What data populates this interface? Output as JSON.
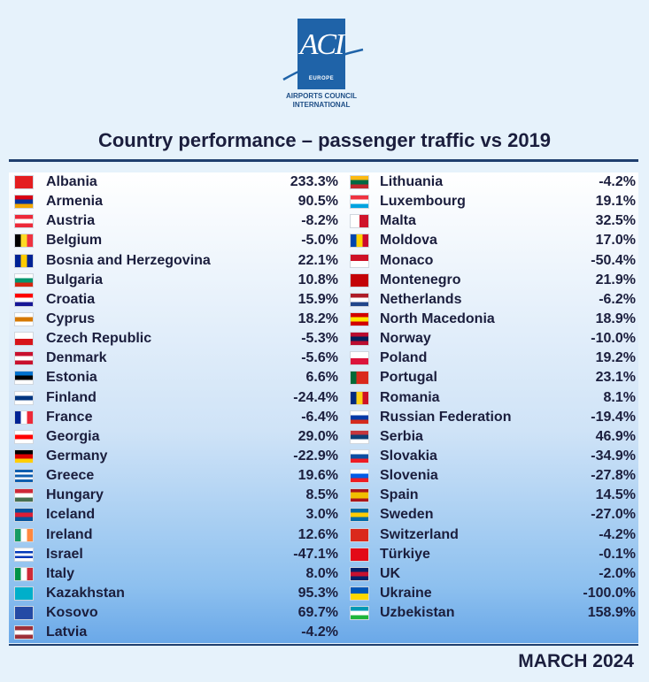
{
  "logo": {
    "brand": "ACI",
    "region": "EUROPE",
    "org_line1": "AIRPORTS COUNCIL",
    "org_line2": "INTERNATIONAL"
  },
  "title": "Country performance – passenger traffic vs 2019",
  "date": "MARCH 2024",
  "left_countries": [
    {
      "name": "Albania",
      "value": "233.3%",
      "flag": "albania-flag",
      "stripes": [
        "#e41e20"
      ],
      "dir": "h"
    },
    {
      "name": "Armenia",
      "value": "90.5%",
      "flag": "armenia-flag",
      "stripes": [
        "#d90012",
        "#0033a0",
        "#f2a800"
      ],
      "dir": "h"
    },
    {
      "name": "Austria",
      "value": "-8.2%",
      "flag": "austria-flag",
      "stripes": [
        "#ed2939",
        "#ffffff",
        "#ed2939"
      ],
      "dir": "h"
    },
    {
      "name": "Belgium",
      "value": "-5.0%",
      "flag": "belgium-flag",
      "stripes": [
        "#000000",
        "#fdda24",
        "#ef3340"
      ],
      "dir": "v"
    },
    {
      "name": "Bosnia and Herzegovina",
      "value": "22.1%",
      "flag": "bosnia-flag",
      "stripes": [
        "#002395",
        "#fecb00",
        "#002395"
      ],
      "dir": "v"
    },
    {
      "name": "Bulgaria",
      "value": "10.8%",
      "flag": "bulgaria-flag",
      "stripes": [
        "#ffffff",
        "#00966e",
        "#d62612"
      ],
      "dir": "h"
    },
    {
      "name": "Croatia",
      "value": "15.9%",
      "flag": "croatia-flag",
      "stripes": [
        "#ff0000",
        "#ffffff",
        "#171796"
      ],
      "dir": "h"
    },
    {
      "name": "Cyprus",
      "value": "18.2%",
      "flag": "cyprus-flag",
      "stripes": [
        "#ffffff",
        "#d57800",
        "#ffffff"
      ],
      "dir": "h"
    },
    {
      "name": "Czech Republic",
      "value": "-5.3%",
      "flag": "czech-flag",
      "stripes": [
        "#ffffff",
        "#d7141a"
      ],
      "dir": "h"
    },
    {
      "name": "Denmark",
      "value": "-5.6%",
      "flag": "denmark-flag",
      "stripes": [
        "#c8102e",
        "#ffffff",
        "#c8102e"
      ],
      "dir": "h"
    },
    {
      "name": "Estonia",
      "value": "6.6%",
      "flag": "estonia-flag",
      "stripes": [
        "#0072ce",
        "#000000",
        "#ffffff"
      ],
      "dir": "h"
    },
    {
      "name": "Finland",
      "value": "-24.4%",
      "flag": "finland-flag",
      "stripes": [
        "#ffffff",
        "#003580",
        "#ffffff"
      ],
      "dir": "h"
    },
    {
      "name": "France",
      "value": "-6.4%",
      "flag": "france-flag",
      "stripes": [
        "#002395",
        "#ffffff",
        "#ed2939"
      ],
      "dir": "v"
    },
    {
      "name": "Georgia",
      "value": "29.0%",
      "flag": "georgia-flag",
      "stripes": [
        "#ffffff",
        "#ff0000",
        "#ffffff"
      ],
      "dir": "h"
    },
    {
      "name": "Germany",
      "value": "-22.9%",
      "flag": "germany-flag",
      "stripes": [
        "#000000",
        "#dd0000",
        "#ffce00"
      ],
      "dir": "h"
    },
    {
      "name": "Greece",
      "value": "19.6%",
      "flag": "greece-flag",
      "stripes": [
        "#0d5eaf",
        "#ffffff",
        "#0d5eaf",
        "#ffffff",
        "#0d5eaf"
      ],
      "dir": "h"
    },
    {
      "name": "Hungary",
      "value": "8.5%",
      "flag": "hungary-flag",
      "stripes": [
        "#ce2939",
        "#ffffff",
        "#477050"
      ],
      "dir": "h"
    },
    {
      "name": "Iceland",
      "value": "3.0%",
      "flag": "iceland-flag",
      "stripes": [
        "#02529c",
        "#dc1e35",
        "#02529c"
      ],
      "dir": "h"
    },
    {
      "name": "Ireland",
      "value": "12.6%",
      "flag": "ireland-flag",
      "stripes": [
        "#169b62",
        "#ffffff",
        "#ff883e"
      ],
      "dir": "v"
    },
    {
      "name": "Israel",
      "value": "-47.1%",
      "flag": "israel-flag",
      "stripes": [
        "#ffffff",
        "#0038b8",
        "#ffffff",
        "#0038b8",
        "#ffffff"
      ],
      "dir": "h"
    },
    {
      "name": "Italy",
      "value": "8.0%",
      "flag": "italy-flag",
      "stripes": [
        "#009246",
        "#ffffff",
        "#ce2b37"
      ],
      "dir": "v"
    },
    {
      "name": "Kazakhstan",
      "value": "95.3%",
      "flag": "kazakhstan-flag",
      "stripes": [
        "#00afca"
      ],
      "dir": "h"
    },
    {
      "name": "Kosovo",
      "value": "69.7%",
      "flag": "kosovo-flag",
      "stripes": [
        "#244aa5"
      ],
      "dir": "h"
    },
    {
      "name": "Latvia",
      "value": "-4.2%",
      "flag": "latvia-flag",
      "stripes": [
        "#9e3039",
        "#ffffff",
        "#9e3039"
      ],
      "dir": "h"
    }
  ],
  "right_countries": [
    {
      "name": "Lithuania",
      "value": "-4.2%",
      "flag": "lithuania-flag",
      "stripes": [
        "#fdb913",
        "#006a44",
        "#c1272d"
      ],
      "dir": "h"
    },
    {
      "name": "Luxembourg",
      "value": "19.1%",
      "flag": "luxembourg-flag",
      "stripes": [
        "#ef3340",
        "#ffffff",
        "#00a3e0"
      ],
      "dir": "h"
    },
    {
      "name": "Malta",
      "value": "32.5%",
      "flag": "malta-flag",
      "stripes": [
        "#ffffff",
        "#cf142b"
      ],
      "dir": "v"
    },
    {
      "name": "Moldova",
      "value": "17.0%",
      "flag": "moldova-flag",
      "stripes": [
        "#0046ae",
        "#ffd200",
        "#cc092f"
      ],
      "dir": "v"
    },
    {
      "name": "Monaco",
      "value": "-50.4%",
      "flag": "monaco-flag",
      "stripes": [
        "#ce1126",
        "#ffffff"
      ],
      "dir": "h"
    },
    {
      "name": "Montenegro",
      "value": "21.9%",
      "flag": "montenegro-flag",
      "stripes": [
        "#c40308"
      ],
      "dir": "h"
    },
    {
      "name": "Netherlands",
      "value": "-6.2%",
      "flag": "netherlands-flag",
      "stripes": [
        "#ae1c28",
        "#ffffff",
        "#21468b"
      ],
      "dir": "h"
    },
    {
      "name": "North Macedonia",
      "value": "18.9%",
      "flag": "north-macedonia-flag",
      "stripes": [
        "#d20000",
        "#ffe600",
        "#d20000"
      ],
      "dir": "h"
    },
    {
      "name": "Norway",
      "value": "-10.0%",
      "flag": "norway-flag",
      "stripes": [
        "#ba0c2f",
        "#00205b",
        "#ba0c2f"
      ],
      "dir": "h"
    },
    {
      "name": "Poland",
      "value": "19.2%",
      "flag": "poland-flag",
      "stripes": [
        "#ffffff",
        "#dc143c"
      ],
      "dir": "h"
    },
    {
      "name": "Portugal",
      "value": "23.1%",
      "flag": "portugal-flag",
      "stripes": [
        "#046a38",
        "#da291c",
        "#da291c"
      ],
      "dir": "v"
    },
    {
      "name": "Romania",
      "value": "8.1%",
      "flag": "romania-flag",
      "stripes": [
        "#002b7f",
        "#fcd116",
        "#ce1126"
      ],
      "dir": "v"
    },
    {
      "name": "Russian Federation",
      "value": "-19.4%",
      "flag": "russia-flag",
      "stripes": [
        "#ffffff",
        "#0039a6",
        "#d52b1e"
      ],
      "dir": "h"
    },
    {
      "name": "Serbia",
      "value": "46.9%",
      "flag": "serbia-flag",
      "stripes": [
        "#c6363c",
        "#0c4076",
        "#ffffff"
      ],
      "dir": "h"
    },
    {
      "name": "Slovakia",
      "value": "-34.9%",
      "flag": "slovakia-flag",
      "stripes": [
        "#ffffff",
        "#0b4ea2",
        "#ee1c25"
      ],
      "dir": "h"
    },
    {
      "name": "Slovenia",
      "value": "-27.8%",
      "flag": "slovenia-flag",
      "stripes": [
        "#ffffff",
        "#005ce6",
        "#ed1c24"
      ],
      "dir": "h"
    },
    {
      "name": "Spain",
      "value": "14.5%",
      "flag": "spain-flag",
      "stripes": [
        "#aa151b",
        "#f1bf00",
        "#f1bf00",
        "#aa151b"
      ],
      "dir": "h"
    },
    {
      "name": "Sweden",
      "value": "-27.0%",
      "flag": "sweden-flag",
      "stripes": [
        "#006aa7",
        "#fecc02",
        "#006aa7"
      ],
      "dir": "h"
    },
    {
      "name": "Switzerland",
      "value": "-4.2%",
      "flag": "switzerland-flag",
      "stripes": [
        "#da291c"
      ],
      "dir": "h"
    },
    {
      "name": "Türkiye",
      "value": "-0.1%",
      "flag": "turkiye-flag",
      "stripes": [
        "#e30a17"
      ],
      "dir": "h"
    },
    {
      "name": "UK",
      "value": "-2.0%",
      "flag": "uk-flag",
      "stripes": [
        "#012169",
        "#c8102e",
        "#012169"
      ],
      "dir": "h"
    },
    {
      "name": "Ukraine",
      "value": "-100.0%",
      "flag": "ukraine-flag",
      "stripes": [
        "#0057b7",
        "#ffd700"
      ],
      "dir": "h"
    },
    {
      "name": "Uzbekistan",
      "value": "158.9%",
      "flag": "uzbekistan-flag",
      "stripes": [
        "#0099b5",
        "#ffffff",
        "#1eb53a"
      ],
      "dir": "h"
    }
  ]
}
